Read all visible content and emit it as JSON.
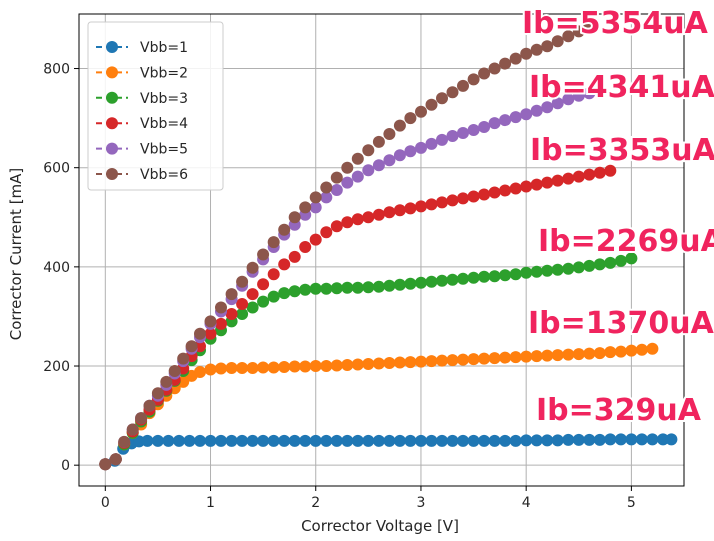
{
  "chart_data": {
    "type": "scatter",
    "xlabel": "Corrector Voltage [V]",
    "ylabel": "Corrector Current [mA]",
    "xlim": [
      -0.25,
      5.5
    ],
    "ylim": [
      -42,
      910
    ],
    "xticks": [
      "0",
      "1",
      "2",
      "3",
      "4",
      "5"
    ],
    "yticks": [
      "0",
      "200",
      "400",
      "600",
      "800"
    ],
    "grid": true,
    "legend_position": "top-left",
    "series": [
      {
        "name": "Vbb=1",
        "color": "#1f77b4",
        "annotation": "Ib=329uA",
        "points": [
          [
            0.0,
            2
          ],
          [
            0.09,
            9
          ],
          [
            0.17,
            33
          ],
          [
            0.25,
            44
          ],
          [
            0.32,
            48
          ],
          [
            0.4,
            49
          ],
          [
            0.5,
            49
          ],
          [
            0.6,
            49
          ],
          [
            0.7,
            49
          ],
          [
            0.8,
            49
          ],
          [
            0.9,
            49
          ],
          [
            1.0,
            49
          ],
          [
            1.1,
            49
          ],
          [
            1.2,
            49
          ],
          [
            1.3,
            49
          ],
          [
            1.4,
            49
          ],
          [
            1.5,
            49
          ],
          [
            1.6,
            49
          ],
          [
            1.7,
            49
          ],
          [
            1.8,
            49
          ],
          [
            1.9,
            49
          ],
          [
            2.0,
            49
          ],
          [
            2.1,
            49
          ],
          [
            2.2,
            49
          ],
          [
            2.3,
            49
          ],
          [
            2.4,
            49
          ],
          [
            2.5,
            49
          ],
          [
            2.6,
            49
          ],
          [
            2.7,
            49
          ],
          [
            2.8,
            49
          ],
          [
            2.9,
            49
          ],
          [
            3.0,
            49
          ],
          [
            3.1,
            49
          ],
          [
            3.2,
            49
          ],
          [
            3.3,
            49
          ],
          [
            3.4,
            49
          ],
          [
            3.5,
            49
          ],
          [
            3.6,
            49
          ],
          [
            3.7,
            49
          ],
          [
            3.8,
            49
          ],
          [
            3.9,
            49
          ],
          [
            4.0,
            50
          ],
          [
            4.1,
            50
          ],
          [
            4.2,
            50
          ],
          [
            4.3,
            50
          ],
          [
            4.4,
            51
          ],
          [
            4.5,
            51
          ],
          [
            4.6,
            51
          ],
          [
            4.7,
            51
          ],
          [
            4.8,
            52
          ],
          [
            4.9,
            52
          ],
          [
            5.0,
            52
          ],
          [
            5.1,
            52
          ],
          [
            5.2,
            52
          ],
          [
            5.3,
            52
          ],
          [
            5.38,
            52
          ]
        ]
      },
      {
        "name": "Vbb=2",
        "color": "#ff7f0e",
        "annotation": "Ib=1370uA",
        "points": [
          [
            0.0,
            2
          ],
          [
            0.1,
            12
          ],
          [
            0.18,
            42
          ],
          [
            0.26,
            65
          ],
          [
            0.34,
            82
          ],
          [
            0.42,
            105
          ],
          [
            0.5,
            123
          ],
          [
            0.58,
            140
          ],
          [
            0.66,
            155
          ],
          [
            0.74,
            168
          ],
          [
            0.82,
            180
          ],
          [
            0.9,
            188
          ],
          [
            1.0,
            193
          ],
          [
            1.1,
            195
          ],
          [
            1.2,
            196
          ],
          [
            1.3,
            196
          ],
          [
            1.4,
            196
          ],
          [
            1.5,
            197
          ],
          [
            1.6,
            197
          ],
          [
            1.7,
            198
          ],
          [
            1.8,
            199
          ],
          [
            1.9,
            199
          ],
          [
            2.0,
            200
          ],
          [
            2.1,
            200
          ],
          [
            2.2,
            201
          ],
          [
            2.3,
            202
          ],
          [
            2.4,
            203
          ],
          [
            2.5,
            204
          ],
          [
            2.6,
            205
          ],
          [
            2.7,
            206
          ],
          [
            2.8,
            207
          ],
          [
            2.9,
            208
          ],
          [
            3.0,
            209
          ],
          [
            3.1,
            210
          ],
          [
            3.2,
            211
          ],
          [
            3.3,
            212
          ],
          [
            3.4,
            213
          ],
          [
            3.5,
            214
          ],
          [
            3.6,
            215
          ],
          [
            3.7,
            216
          ],
          [
            3.8,
            217
          ],
          [
            3.9,
            218
          ],
          [
            4.0,
            219
          ],
          [
            4.1,
            220
          ],
          [
            4.2,
            221
          ],
          [
            4.3,
            222
          ],
          [
            4.4,
            223
          ],
          [
            4.5,
            224
          ],
          [
            4.6,
            225
          ],
          [
            4.7,
            226
          ],
          [
            4.8,
            228
          ],
          [
            4.9,
            229
          ],
          [
            5.0,
            231
          ],
          [
            5.1,
            233
          ],
          [
            5.2,
            235
          ]
        ]
      },
      {
        "name": "Vbb=3",
        "color": "#2ca02c",
        "annotation": "Ib=2269uA",
        "points": [
          [
            0.0,
            2
          ],
          [
            0.1,
            12
          ],
          [
            0.18,
            42
          ],
          [
            0.26,
            65
          ],
          [
            0.34,
            88
          ],
          [
            0.42,
            108
          ],
          [
            0.5,
            130
          ],
          [
            0.58,
            150
          ],
          [
            0.66,
            170
          ],
          [
            0.74,
            190
          ],
          [
            0.82,
            212
          ],
          [
            0.9,
            232
          ],
          [
            1.0,
            255
          ],
          [
            1.1,
            272
          ],
          [
            1.2,
            290
          ],
          [
            1.3,
            305
          ],
          [
            1.4,
            318
          ],
          [
            1.5,
            330
          ],
          [
            1.6,
            340
          ],
          [
            1.7,
            347
          ],
          [
            1.8,
            351
          ],
          [
            1.9,
            354
          ],
          [
            2.0,
            356
          ],
          [
            2.1,
            356
          ],
          [
            2.2,
            357
          ],
          [
            2.3,
            358
          ],
          [
            2.4,
            358
          ],
          [
            2.5,
            359
          ],
          [
            2.6,
            360
          ],
          [
            2.7,
            362
          ],
          [
            2.8,
            364
          ],
          [
            2.9,
            366
          ],
          [
            3.0,
            368
          ],
          [
            3.1,
            370
          ],
          [
            3.2,
            372
          ],
          [
            3.3,
            374
          ],
          [
            3.4,
            376
          ],
          [
            3.5,
            378
          ],
          [
            3.6,
            380
          ],
          [
            3.7,
            381
          ],
          [
            3.8,
            383
          ],
          [
            3.9,
            385
          ],
          [
            4.0,
            388
          ],
          [
            4.1,
            390
          ],
          [
            4.2,
            392
          ],
          [
            4.3,
            394
          ],
          [
            4.4,
            396
          ],
          [
            4.5,
            399
          ],
          [
            4.6,
            402
          ],
          [
            4.7,
            405
          ],
          [
            4.8,
            408
          ],
          [
            4.9,
            412
          ],
          [
            5.0,
            417
          ]
        ]
      },
      {
        "name": "Vbb=4",
        "color": "#d62728",
        "annotation": "Ib=3353uA",
        "points": [
          [
            0.0,
            2
          ],
          [
            0.1,
            12
          ],
          [
            0.18,
            45
          ],
          [
            0.26,
            68
          ],
          [
            0.34,
            92
          ],
          [
            0.42,
            112
          ],
          [
            0.5,
            132
          ],
          [
            0.58,
            152
          ],
          [
            0.66,
            172
          ],
          [
            0.74,
            195
          ],
          [
            0.82,
            220
          ],
          [
            0.9,
            240
          ],
          [
            1.0,
            265
          ],
          [
            1.1,
            285
          ],
          [
            1.2,
            305
          ],
          [
            1.3,
            325
          ],
          [
            1.4,
            345
          ],
          [
            1.5,
            365
          ],
          [
            1.6,
            385
          ],
          [
            1.7,
            405
          ],
          [
            1.8,
            420
          ],
          [
            1.9,
            440
          ],
          [
            2.0,
            455
          ],
          [
            2.1,
            470
          ],
          [
            2.2,
            482
          ],
          [
            2.3,
            490
          ],
          [
            2.4,
            496
          ],
          [
            2.5,
            500
          ],
          [
            2.6,
            505
          ],
          [
            2.7,
            510
          ],
          [
            2.8,
            514
          ],
          [
            2.9,
            518
          ],
          [
            3.0,
            522
          ],
          [
            3.1,
            526
          ],
          [
            3.2,
            530
          ],
          [
            3.3,
            534
          ],
          [
            3.4,
            538
          ],
          [
            3.5,
            542
          ],
          [
            3.6,
            546
          ],
          [
            3.7,
            550
          ],
          [
            3.8,
            554
          ],
          [
            3.9,
            558
          ],
          [
            4.0,
            562
          ],
          [
            4.1,
            566
          ],
          [
            4.2,
            570
          ],
          [
            4.3,
            574
          ],
          [
            4.4,
            578
          ],
          [
            4.5,
            582
          ],
          [
            4.6,
            586
          ],
          [
            4.7,
            590
          ],
          [
            4.8,
            594
          ]
        ]
      },
      {
        "name": "Vbb=5",
        "color": "#9467bd",
        "annotation": "Ib=4341uA",
        "points": [
          [
            0.0,
            2
          ],
          [
            0.1,
            12
          ],
          [
            0.18,
            47
          ],
          [
            0.26,
            72
          ],
          [
            0.34,
            95
          ],
          [
            0.42,
            120
          ],
          [
            0.5,
            140
          ],
          [
            0.58,
            162
          ],
          [
            0.66,
            185
          ],
          [
            0.74,
            210
          ],
          [
            0.82,
            235
          ],
          [
            0.9,
            258
          ],
          [
            1.0,
            285
          ],
          [
            1.1,
            310
          ],
          [
            1.2,
            335
          ],
          [
            1.3,
            362
          ],
          [
            1.4,
            390
          ],
          [
            1.5,
            415
          ],
          [
            1.6,
            440
          ],
          [
            1.7,
            465
          ],
          [
            1.8,
            485
          ],
          [
            1.9,
            505
          ],
          [
            2.0,
            520
          ],
          [
            2.1,
            540
          ],
          [
            2.2,
            555
          ],
          [
            2.3,
            570
          ],
          [
            2.4,
            582
          ],
          [
            2.5,
            595
          ],
          [
            2.6,
            605
          ],
          [
            2.7,
            615
          ],
          [
            2.8,
            625
          ],
          [
            2.9,
            633
          ],
          [
            3.0,
            640
          ],
          [
            3.1,
            648
          ],
          [
            3.2,
            656
          ],
          [
            3.3,
            664
          ],
          [
            3.4,
            670
          ],
          [
            3.5,
            676
          ],
          [
            3.6,
            682
          ],
          [
            3.7,
            690
          ],
          [
            3.8,
            696
          ],
          [
            3.9,
            702
          ],
          [
            4.0,
            708
          ],
          [
            4.1,
            715
          ],
          [
            4.2,
            722
          ],
          [
            4.3,
            730
          ],
          [
            4.4,
            738
          ],
          [
            4.5,
            745
          ],
          [
            4.6,
            750
          ]
        ]
      },
      {
        "name": "Vbb=6",
        "color": "#8c564b",
        "annotation": "Ib=5354uA",
        "points": [
          [
            0.0,
            2
          ],
          [
            0.1,
            12
          ],
          [
            0.18,
            47
          ],
          [
            0.26,
            72
          ],
          [
            0.34,
            95
          ],
          [
            0.42,
            120
          ],
          [
            0.5,
            145
          ],
          [
            0.58,
            168
          ],
          [
            0.66,
            190
          ],
          [
            0.74,
            215
          ],
          [
            0.82,
            240
          ],
          [
            0.9,
            265
          ],
          [
            1.0,
            290
          ],
          [
            1.1,
            318
          ],
          [
            1.2,
            345
          ],
          [
            1.3,
            370
          ],
          [
            1.4,
            398
          ],
          [
            1.5,
            425
          ],
          [
            1.6,
            450
          ],
          [
            1.7,
            475
          ],
          [
            1.8,
            500
          ],
          [
            1.9,
            520
          ],
          [
            2.0,
            540
          ],
          [
            2.1,
            560
          ],
          [
            2.2,
            580
          ],
          [
            2.3,
            600
          ],
          [
            2.4,
            618
          ],
          [
            2.5,
            635
          ],
          [
            2.6,
            652
          ],
          [
            2.7,
            668
          ],
          [
            2.8,
            685
          ],
          [
            2.9,
            700
          ],
          [
            3.0,
            713
          ],
          [
            3.1,
            727
          ],
          [
            3.2,
            740
          ],
          [
            3.3,
            752
          ],
          [
            3.4,
            765
          ],
          [
            3.5,
            778
          ],
          [
            3.6,
            790
          ],
          [
            3.7,
            800
          ],
          [
            3.8,
            810
          ],
          [
            3.9,
            820
          ],
          [
            4.0,
            830
          ],
          [
            4.1,
            838
          ],
          [
            4.2,
            845
          ],
          [
            4.3,
            855
          ],
          [
            4.4,
            865
          ],
          [
            4.5,
            875
          ],
          [
            4.6,
            885
          ]
        ]
      }
    ]
  }
}
